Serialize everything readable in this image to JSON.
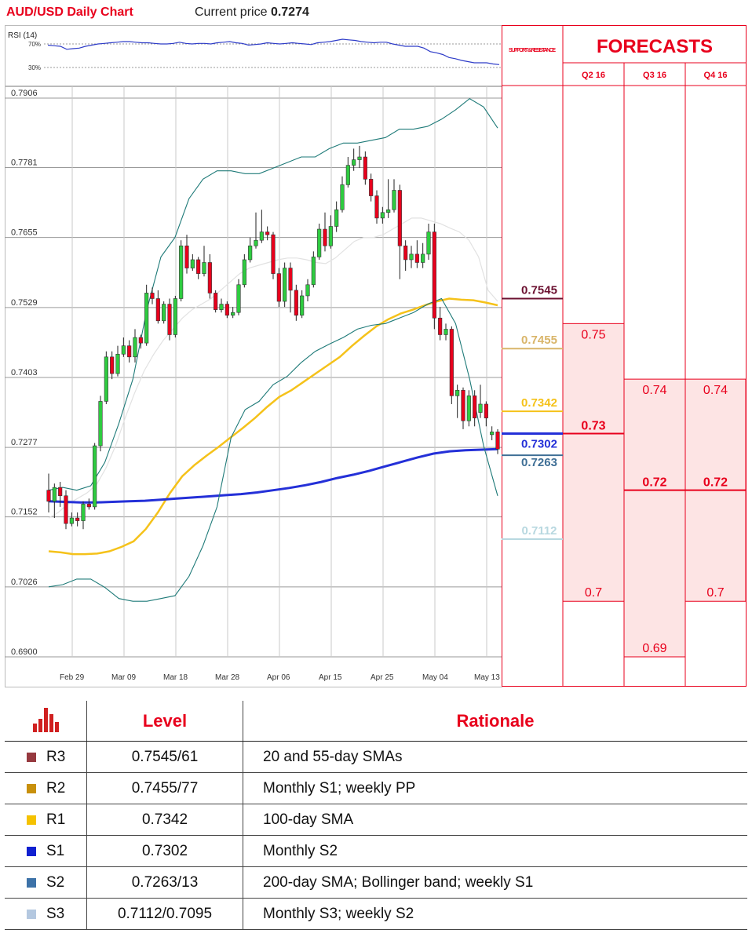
{
  "header": {
    "title": "AUD/USD Daily Chart",
    "price_label": "Current price",
    "price_value": "0.7274"
  },
  "rsi": {
    "label": "RSI (14)",
    "upper": "70%",
    "lower": "30%",
    "values": [
      68,
      67,
      66,
      61,
      62,
      63,
      66,
      68,
      70,
      71,
      72,
      73,
      74,
      74,
      73,
      72,
      72,
      71,
      70,
      70,
      71,
      73,
      71,
      70,
      71,
      71,
      70,
      72,
      73,
      74,
      72,
      71,
      68,
      69,
      70,
      72,
      71,
      70,
      71,
      72,
      71,
      70,
      69,
      72,
      73,
      74,
      76,
      78,
      77,
      76,
      74,
      73,
      72,
      73,
      73,
      70,
      68,
      66,
      66,
      66,
      63,
      57,
      55,
      52,
      47,
      45,
      42,
      40,
      38,
      38,
      38,
      36,
      35
    ]
  },
  "colors": {
    "accent_red": "#e8001c",
    "sma20": "#e6e6e6",
    "sma55": "#f5c21a",
    "sma200": "#2430d8",
    "bollinger": "#1e7a78",
    "rsi_line": "#2e3cc8",
    "candle_up": "#2ecc40",
    "candle_down": "#e8001c"
  },
  "chart_data": {
    "type": "candlestick",
    "yticks": [
      "0.7906",
      "0.7781",
      "0.7655",
      "0.7529",
      "0.7403",
      "0.7277",
      "0.7152",
      "0.7026",
      "0.6900"
    ],
    "ylim": [
      0.69,
      0.7906
    ],
    "xticks": [
      "Feb 29",
      "Mar 09",
      "Mar 18",
      "Mar 28",
      "Apr 06",
      "Apr 15",
      "Apr 25",
      "May 04",
      "May 13"
    ],
    "candles": [
      [
        0.72,
        0.718,
        0.723,
        0.716
      ],
      [
        0.718,
        0.7205,
        0.7212,
        0.715
      ],
      [
        0.7205,
        0.719,
        0.7215,
        0.717
      ],
      [
        0.719,
        0.714,
        0.72,
        0.713
      ],
      [
        0.714,
        0.715,
        0.716,
        0.7135
      ],
      [
        0.715,
        0.7145,
        0.716,
        0.7135
      ],
      [
        0.7145,
        0.7175,
        0.718,
        0.713
      ],
      [
        0.7175,
        0.717,
        0.7185,
        0.7165
      ],
      [
        0.717,
        0.728,
        0.7285,
        0.7165
      ],
      [
        0.728,
        0.736,
        0.737,
        0.727
      ],
      [
        0.736,
        0.744,
        0.745,
        0.7355
      ],
      [
        0.744,
        0.741,
        0.745,
        0.74
      ],
      [
        0.741,
        0.7445,
        0.746,
        0.7405
      ],
      [
        0.7445,
        0.746,
        0.7475,
        0.744
      ],
      [
        0.746,
        0.744,
        0.747,
        0.743
      ],
      [
        0.744,
        0.7475,
        0.749,
        0.743
      ],
      [
        0.7475,
        0.7465,
        0.748,
        0.7455
      ],
      [
        0.7465,
        0.7555,
        0.757,
        0.746
      ],
      [
        0.7555,
        0.7545,
        0.7565,
        0.7535
      ],
      [
        0.7545,
        0.7505,
        0.756,
        0.75
      ],
      [
        0.7505,
        0.7535,
        0.754,
        0.75
      ],
      [
        0.7535,
        0.748,
        0.7545,
        0.747
      ],
      [
        0.748,
        0.7545,
        0.755,
        0.7475
      ],
      [
        0.7545,
        0.764,
        0.765,
        0.754
      ],
      [
        0.764,
        0.76,
        0.766,
        0.759
      ],
      [
        0.76,
        0.7615,
        0.7625,
        0.7595
      ],
      [
        0.7615,
        0.759,
        0.762,
        0.758
      ],
      [
        0.759,
        0.761,
        0.764,
        0.7585
      ],
      [
        0.761,
        0.7555,
        0.7625,
        0.7545
      ],
      [
        0.7555,
        0.7525,
        0.756,
        0.752
      ],
      [
        0.7525,
        0.7535,
        0.7545,
        0.752
      ],
      [
        0.7535,
        0.7515,
        0.754,
        0.751
      ],
      [
        0.7515,
        0.752,
        0.753,
        0.751
      ],
      [
        0.752,
        0.757,
        0.758,
        0.7515
      ],
      [
        0.757,
        0.7615,
        0.7625,
        0.7565
      ],
      [
        0.7615,
        0.764,
        0.7655,
        0.761
      ],
      [
        0.764,
        0.765,
        0.77,
        0.7635
      ],
      [
        0.765,
        0.7665,
        0.7705,
        0.7645
      ],
      [
        0.7665,
        0.766,
        0.7675,
        0.765
      ],
      [
        0.766,
        0.759,
        0.7665,
        0.758
      ],
      [
        0.759,
        0.754,
        0.76,
        0.753
      ],
      [
        0.754,
        0.76,
        0.761,
        0.753
      ],
      [
        0.76,
        0.756,
        0.761,
        0.752
      ],
      [
        0.756,
        0.7515,
        0.757,
        0.7505
      ],
      [
        0.7515,
        0.755,
        0.756,
        0.751
      ],
      [
        0.755,
        0.757,
        0.758,
        0.754
      ],
      [
        0.757,
        0.762,
        0.763,
        0.7565
      ],
      [
        0.762,
        0.767,
        0.768,
        0.7615
      ],
      [
        0.767,
        0.764,
        0.77,
        0.763
      ],
      [
        0.764,
        0.7675,
        0.7695,
        0.7635
      ],
      [
        0.7675,
        0.7705,
        0.772,
        0.7665
      ],
      [
        0.7705,
        0.775,
        0.7765,
        0.77
      ],
      [
        0.775,
        0.7785,
        0.78,
        0.7745
      ],
      [
        0.7785,
        0.7795,
        0.7815,
        0.7775
      ],
      [
        0.7795,
        0.78,
        0.782,
        0.778
      ],
      [
        0.78,
        0.776,
        0.781,
        0.775
      ],
      [
        0.776,
        0.773,
        0.777,
        0.772
      ],
      [
        0.773,
        0.769,
        0.774,
        0.768
      ],
      [
        0.769,
        0.77,
        0.771,
        0.768
      ],
      [
        0.77,
        0.7705,
        0.776,
        0.769
      ],
      [
        0.7705,
        0.774,
        0.776,
        0.77
      ],
      [
        0.774,
        0.764,
        0.775,
        0.758
      ],
      [
        0.764,
        0.7615,
        0.765,
        0.7595
      ],
      [
        0.7615,
        0.7625,
        0.764,
        0.76
      ],
      [
        0.7625,
        0.761,
        0.765,
        0.76
      ],
      [
        0.761,
        0.7625,
        0.7645,
        0.76
      ],
      [
        0.7625,
        0.7665,
        0.768,
        0.7615
      ],
      [
        0.7665,
        0.751,
        0.768,
        0.749
      ],
      [
        0.751,
        0.748,
        0.753,
        0.747
      ],
      [
        0.748,
        0.749,
        0.75,
        0.747
      ],
      [
        0.749,
        0.737,
        0.7495,
        0.7355
      ],
      [
        0.737,
        0.738,
        0.739,
        0.733
      ],
      [
        0.738,
        0.7325,
        0.7385,
        0.731
      ],
      [
        0.7325,
        0.737,
        0.738,
        0.7315
      ],
      [
        0.737,
        0.733,
        0.738,
        0.7315
      ],
      [
        0.734,
        0.7355,
        0.739,
        0.733
      ],
      [
        0.7355,
        0.733,
        0.736,
        0.7315
      ],
      [
        0.73,
        0.7305,
        0.7315,
        0.729
      ],
      [
        0.7305,
        0.7274,
        0.731,
        0.7265
      ]
    ],
    "series": [
      {
        "values": [
          0.715,
          0.716,
          0.7175,
          0.7185,
          0.7195,
          0.721,
          0.724,
          0.728,
          0.733,
          0.7375,
          0.7415,
          0.7445,
          0.747,
          0.749,
          0.751,
          0.7525,
          0.7535,
          0.7545,
          0.756,
          0.7575,
          0.759,
          0.76,
          0.7605,
          0.761,
          0.7615,
          0.7618,
          0.7618,
          0.7615,
          0.761,
          0.7608,
          0.7618,
          0.7633,
          0.7648,
          0.7655,
          0.7655,
          0.766,
          0.767,
          0.768,
          0.769,
          0.769,
          0.7685,
          0.768,
          0.7672,
          0.7665,
          0.765,
          0.762,
          0.756,
          0.754
        ]
      },
      {
        "values": [
          0.709,
          0.7088,
          0.7085,
          0.7085,
          0.7086,
          0.709,
          0.7098,
          0.7108,
          0.713,
          0.716,
          0.7195,
          0.7225,
          0.7245,
          0.7262,
          0.7278,
          0.7295,
          0.7312,
          0.733,
          0.735,
          0.7368,
          0.738,
          0.7395,
          0.741,
          0.7425,
          0.744,
          0.746,
          0.7478,
          0.7495,
          0.7508,
          0.7518,
          0.7525,
          0.7533,
          0.754,
          0.7545,
          0.7543,
          0.7542,
          0.7538,
          0.7533
        ]
      },
      {
        "values": [
          0.718,
          0.7179,
          0.7178,
          0.7178,
          0.7179,
          0.718,
          0.7181,
          0.7183,
          0.7185,
          0.7187,
          0.7189,
          0.7191,
          0.7193,
          0.7196,
          0.72,
          0.7204,
          0.7209,
          0.7215,
          0.7222,
          0.7228,
          0.7235,
          0.7243,
          0.7251,
          0.7259,
          0.7266,
          0.727,
          0.7272,
          0.7273,
          0.7274
        ]
      },
      {
        "values": [
          0.72,
          0.7205,
          0.72,
          0.7208,
          0.725,
          0.732,
          0.74,
          0.7525,
          0.762,
          0.7655,
          0.7725,
          0.776,
          0.7775,
          0.7775,
          0.777,
          0.777,
          0.778,
          0.779,
          0.78,
          0.78,
          0.7815,
          0.7825,
          0.7825,
          0.783,
          0.7835,
          0.785,
          0.785,
          0.7855,
          0.7868,
          0.7885,
          0.7905,
          0.789,
          0.7852
        ]
      },
      {
        "values": [
          0.7026,
          0.703,
          0.704,
          0.704,
          0.7025,
          0.7005,
          0.7,
          0.7,
          0.7005,
          0.701,
          0.7045,
          0.71,
          0.717,
          0.7295,
          0.7345,
          0.736,
          0.739,
          0.7405,
          0.743,
          0.745,
          0.7463,
          0.7475,
          0.749,
          0.7497,
          0.75,
          0.751,
          0.752,
          0.7535,
          0.7545,
          0.75,
          0.74,
          0.728,
          0.719
        ]
      }
    ]
  },
  "sr_panel": {
    "header": "SUPPORT & RESISTANCE",
    "levels": [
      {
        "label": "0.7545",
        "color": "#6b1030"
      },
      {
        "label": "0.7455",
        "color": "#d9b56a"
      },
      {
        "label": "0.7342",
        "color": "#f5c21a"
      },
      {
        "label": "0.7302",
        "color": "#2430d8"
      },
      {
        "label": "0.7263",
        "color": "#3f6f96"
      },
      {
        "label": "0.7112",
        "color": "#b8d8e0"
      }
    ]
  },
  "forecasts": {
    "title": "FORECASTS",
    "quarters": [
      {
        "label": "Q2 16",
        "high": "0.75",
        "mid": "0.73",
        "low": "0.7"
      },
      {
        "label": "Q3 16",
        "high": "0.74",
        "mid": "0.72",
        "low": "0.69"
      },
      {
        "label": "Q4 16",
        "high": "0.74",
        "mid": "0.72",
        "low": "0.7"
      }
    ]
  },
  "levels_table": {
    "level_header": "Level",
    "rationale_header": "Rationale",
    "rows": [
      {
        "id": "R3",
        "color": "#96393f",
        "level": "0.7545/61",
        "rationale": "20 and 55-day SMAs"
      },
      {
        "id": "R2",
        "color": "#c8900c",
        "level": "0.7455/77",
        "rationale": "Monthly S1; weekly PP"
      },
      {
        "id": "R1",
        "color": "#f5c200",
        "level": "0.7342",
        "rationale": "100-day SMA"
      },
      {
        "id": "S1",
        "color": "#1020d0",
        "level": "0.7302",
        "rationale": "Monthly S2"
      },
      {
        "id": "S2",
        "color": "#3d72a8",
        "level": "0.7263/13",
        "rationale": "200-day SMA; Bollinger band; weekly S1"
      },
      {
        "id": "S3",
        "color": "#b4c8e0",
        "level": "0.7112/0.7095",
        "rationale": "Monthly S3; weekly S2"
      }
    ]
  }
}
